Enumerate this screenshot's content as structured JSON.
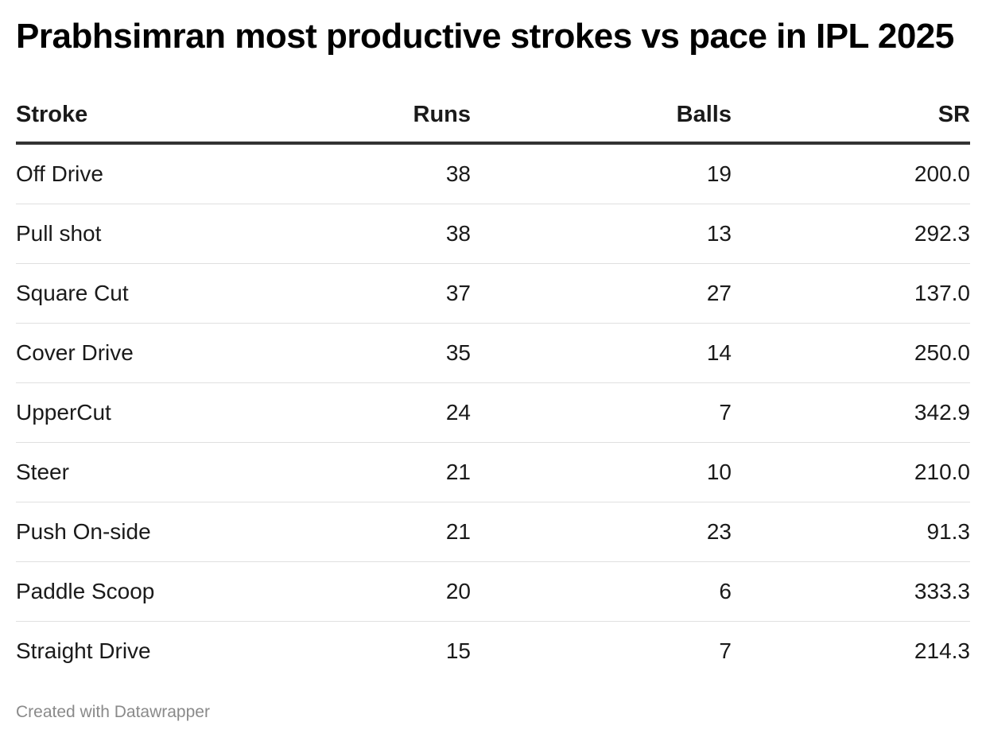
{
  "title": "Prabhsimran most productive strokes vs pace in IPL 2025",
  "footer": "Created with Datawrapper",
  "chart_data": {
    "type": "table",
    "title": "Prabhsimran most productive strokes vs pace in IPL 2025",
    "columns": [
      "Stroke",
      "Runs",
      "Balls",
      "SR"
    ],
    "rows": [
      {
        "stroke": "Off Drive",
        "runs": "38",
        "balls": "19",
        "sr": "200.0"
      },
      {
        "stroke": "Pull shot",
        "runs": "38",
        "balls": "13",
        "sr": "292.3"
      },
      {
        "stroke": "Square Cut",
        "runs": "37",
        "balls": "27",
        "sr": "137.0"
      },
      {
        "stroke": "Cover Drive",
        "runs": "35",
        "balls": "14",
        "sr": "250.0"
      },
      {
        "stroke": "UpperCut",
        "runs": "24",
        "balls": "7",
        "sr": "342.9"
      },
      {
        "stroke": "Steer",
        "runs": "21",
        "balls": "10",
        "sr": "210.0"
      },
      {
        "stroke": "Push On-side",
        "runs": "21",
        "balls": "23",
        "sr": "91.3"
      },
      {
        "stroke": "Paddle Scoop",
        "runs": "20",
        "balls": "6",
        "sr": "333.3"
      },
      {
        "stroke": "Straight Drive",
        "runs": "15",
        "balls": "7",
        "sr": "214.3"
      }
    ]
  }
}
